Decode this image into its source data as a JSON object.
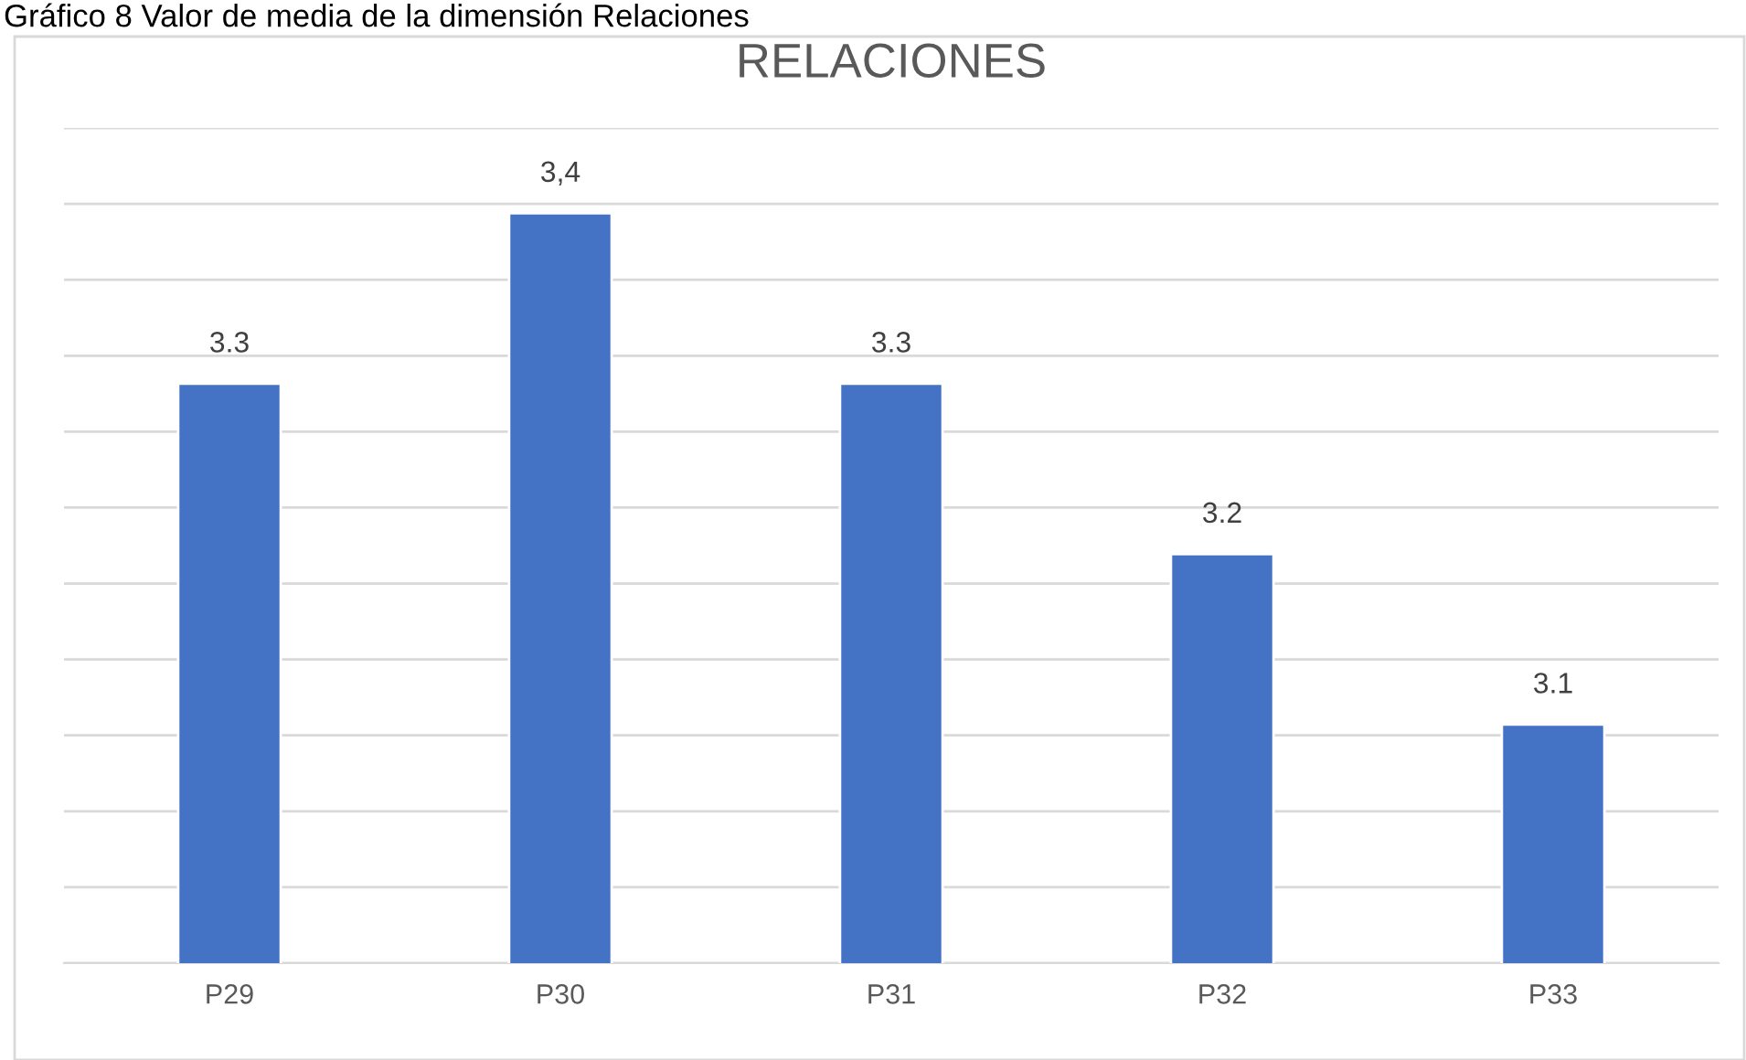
{
  "chart_data": {
    "type": "bar",
    "title": "RELACIONES",
    "annotations": [
      "Gráfico 8 Valor de media de la dimensión Relaciones"
    ],
    "categories": [
      "P29",
      "P30",
      "P31",
      "P32",
      "P33"
    ],
    "values": [
      3.3,
      3.4,
      3.3,
      3.2,
      3.1
    ],
    "value_labels": [
      "3.3",
      "3,4",
      "3.3",
      "3.2",
      "3.1"
    ],
    "ylim": [
      2.96,
      3.45
    ],
    "tick_labels": "x",
    "color": "#4472c4",
    "grid": "y"
  }
}
